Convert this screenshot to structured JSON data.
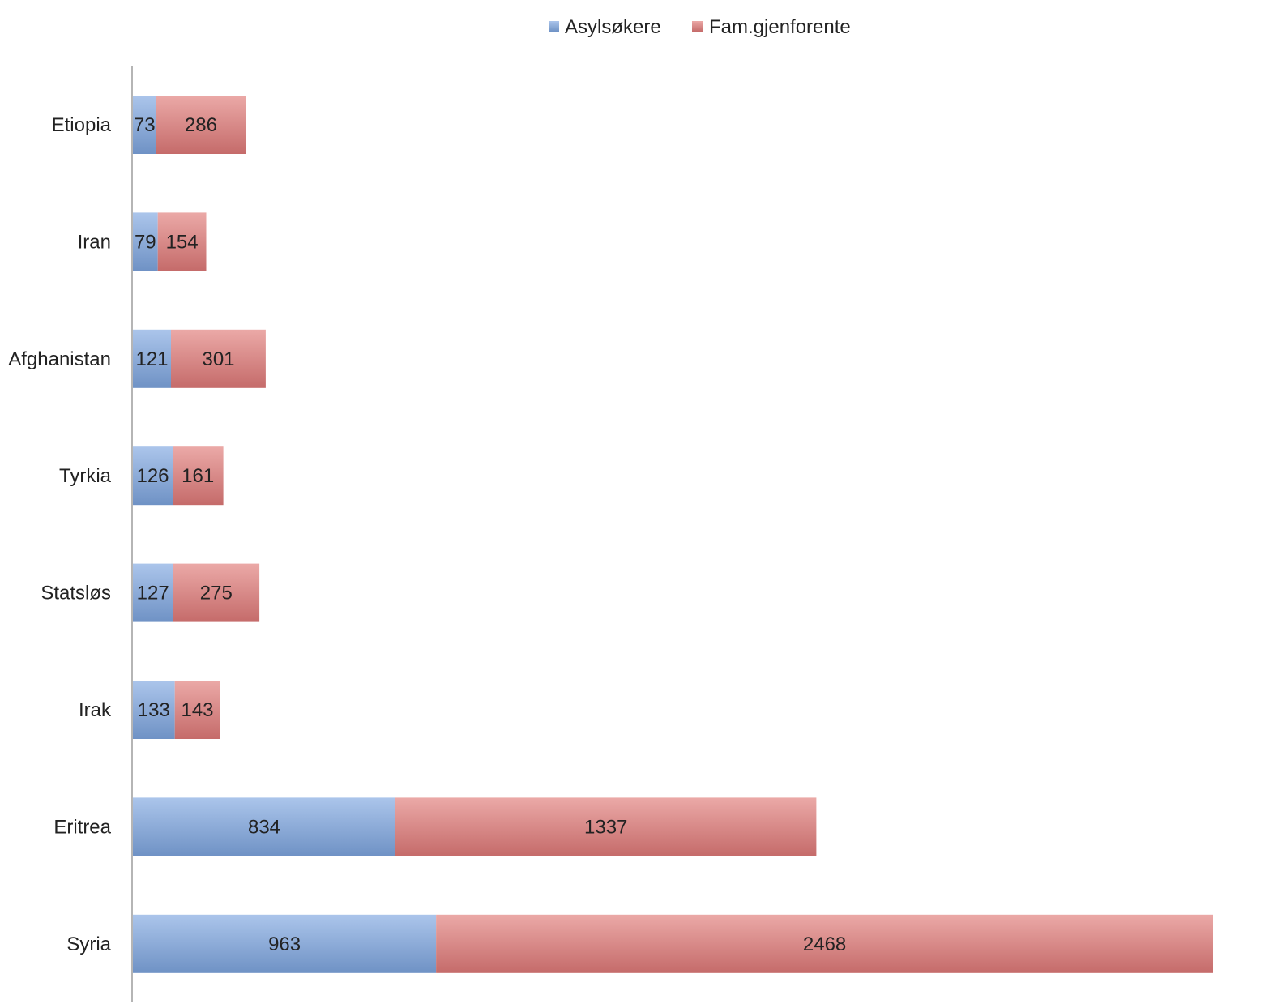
{
  "chart_data": {
    "type": "bar",
    "orientation": "horizontal",
    "stacked": true,
    "categories": [
      "Etiopia",
      "Iran",
      "Afghanistan",
      "Tyrkia",
      "Statsløs",
      "Irak",
      "Eritrea",
      "Syria"
    ],
    "series": [
      {
        "name": "Asylsøkere",
        "color": "#7ea6e0",
        "values": [
          73,
          79,
          121,
          126,
          127,
          133,
          834,
          963
        ]
      },
      {
        "name": "Fam.gjenforente",
        "color": "#e07a78",
        "values": [
          286,
          154,
          301,
          161,
          275,
          143,
          1337,
          2468
        ]
      }
    ],
    "data_labels": true,
    "legend_position": "top",
    "xlim": [
      0,
      3431
    ],
    "grid": false,
    "title": "",
    "xlabel": "",
    "ylabel": ""
  }
}
